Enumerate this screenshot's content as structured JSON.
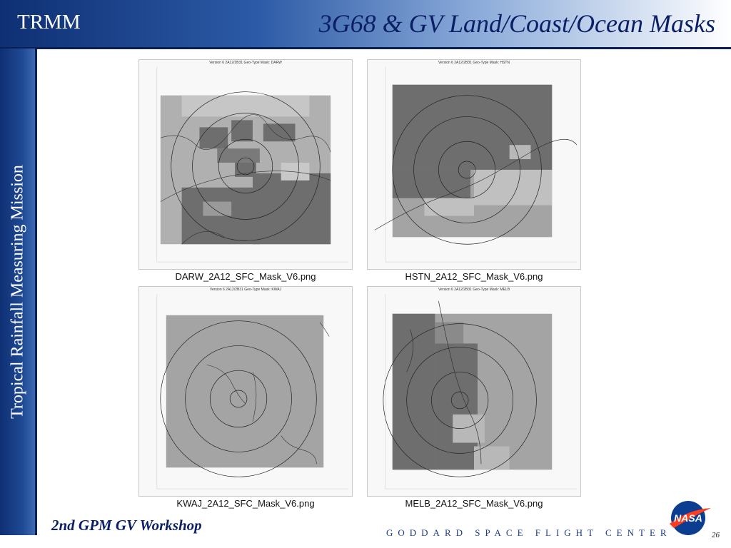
{
  "header": {
    "brand": "TRMM",
    "title": "3G68 & GV Land/Coast/Ocean Masks"
  },
  "sidebar": {
    "label": "Tropical Rainfall Measuring Mission"
  },
  "panels": [
    {
      "caption": "DARW_2A12_SFC_Mask_V6.png",
      "plot_title": "Version 6 2A12/2B31 Geo-Type Mask: DARW"
    },
    {
      "caption": "HSTN_2A12_SFC_Mask_V6.png",
      "plot_title": "Version 6 2A12/2B31 Geo-Type Mask: HSTN"
    },
    {
      "caption": "KWAJ_2A12_SFC_Mask_V6.png",
      "plot_title": "Version 6 2A12/2B31 Geo-Type Mask: KWAJ"
    },
    {
      "caption": "MELB_2A12_SFC_Mask_V6.png",
      "plot_title": "Version 6 2A12/2B31 Geo-Type Mask: MELB"
    }
  ],
  "footer": {
    "workshop": "2nd GPM GV Workshop",
    "center": "GODDARD SPACE FLIGHT CENTER",
    "page": "26"
  },
  "logo": {
    "text": "NASA",
    "colors": {
      "blue": "#0b3d91",
      "red": "#fc3d21"
    }
  },
  "map_colors": {
    "land": "#6e6e6e",
    "coast": "#b8b8b8",
    "ocean": "#a4a4a4",
    "bg": "#f8f8f8"
  }
}
